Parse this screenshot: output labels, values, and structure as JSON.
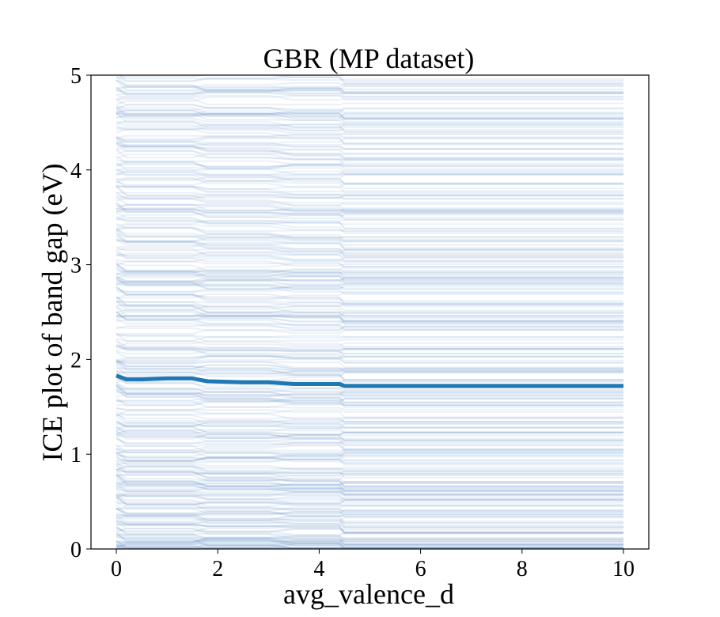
{
  "chart_data": {
    "type": "line",
    "title": "GBR (MP dataset)",
    "xlabel": "avg_valence_d",
    "ylabel": "ICE plot of band gap (eV)",
    "xlim": [
      -0.5,
      10.5
    ],
    "ylim": [
      0,
      5
    ],
    "xticks": [
      0,
      2,
      4,
      6,
      8,
      10
    ],
    "xtick_labels": [
      "0",
      "2",
      "4",
      "6",
      "8",
      "10"
    ],
    "yticks": [
      0,
      1,
      2,
      3,
      4,
      5
    ],
    "ytick_labels": [
      "0",
      "1",
      "2",
      "3",
      "4",
      "5"
    ],
    "grid": false,
    "colors": {
      "ice": "#5b8fc2",
      "pd": "#1f77b4"
    },
    "x": [
      0,
      0.2,
      0.5,
      1.0,
      1.5,
      1.8,
      2.5,
      3.0,
      3.5,
      4.0,
      4.4,
      4.5,
      5.0,
      6.0,
      7.0,
      8.0,
      9.0,
      9.5,
      10.0
    ],
    "pd_values": [
      1.83,
      1.79,
      1.79,
      1.8,
      1.8,
      1.77,
      1.76,
      1.76,
      1.74,
      1.74,
      1.74,
      1.72,
      1.72,
      1.72,
      1.72,
      1.72,
      1.72,
      1.72,
      1.72
    ],
    "ice_note_free": true,
    "series": [
      {
        "name": "",
        "kind": "average",
        "values": [
          1.83,
          1.79,
          1.79,
          1.8,
          1.8,
          1.77,
          1.76,
          1.76,
          1.74,
          1.74,
          1.74,
          1.72,
          1.72,
          1.72,
          1.72,
          1.72,
          1.72,
          1.72,
          1.72
        ]
      }
    ]
  }
}
